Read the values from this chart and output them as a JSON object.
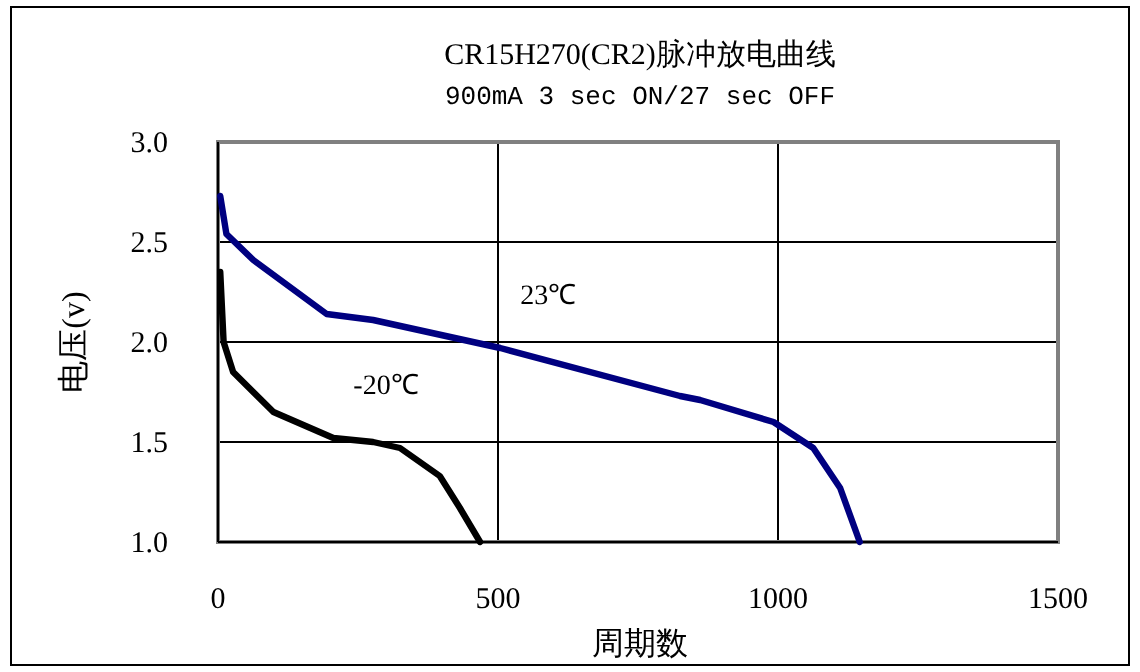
{
  "chart_data": {
    "type": "line",
    "title": "CR15H270(CR2)脉冲放电曲线",
    "subtitle": "900mA 3 sec ON/27 sec OFF",
    "xlabel": "周期数",
    "ylabel": "电压(v)",
    "xlim": [
      0,
      1500
    ],
    "xticks": [
      0,
      500,
      1000,
      1500
    ],
    "ylim": [
      1.0,
      3.0
    ],
    "yticks": [
      {
        "value": 1.0,
        "label": "1.0"
      },
      {
        "value": 1.5,
        "label": "1.5"
      },
      {
        "value": 2.0,
        "label": "2.0"
      },
      {
        "value": 2.5,
        "label": "2.5"
      },
      {
        "value": 3.0,
        "label": "3.0"
      }
    ],
    "grid": true,
    "series": [
      {
        "name": "23℃",
        "color": "#000080",
        "x": [
          4,
          15,
          63,
          194,
          277,
          504,
          825,
          861,
          992,
          1063,
          1111,
          1146
        ],
        "values": [
          2.73,
          2.54,
          2.41,
          2.14,
          2.11,
          1.97,
          1.73,
          1.71,
          1.6,
          1.47,
          1.27,
          1.0
        ]
      },
      {
        "name": "-20℃",
        "color": "#000000",
        "x": [
          4,
          10,
          27,
          99,
          206,
          277,
          325,
          396,
          432,
          468
        ],
        "values": [
          2.35,
          2.0,
          1.85,
          1.65,
          1.52,
          1.5,
          1.47,
          1.33,
          1.17,
          1.0
        ]
      }
    ]
  }
}
